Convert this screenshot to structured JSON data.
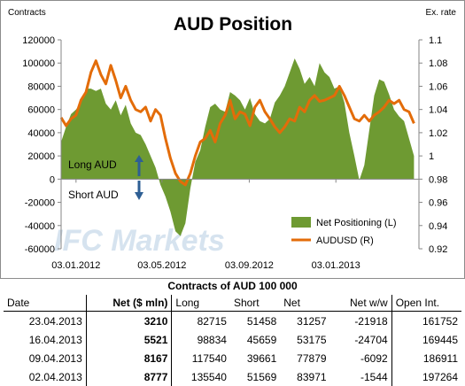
{
  "chart_data": {
    "type": "area+line",
    "title": "AUD Position",
    "ylabel": "Contracts",
    "y2label": "Ex. rate",
    "ylim": [
      -60000,
      120000
    ],
    "yticks": [
      "120000",
      "100000",
      "80000",
      "60000",
      "40000",
      "20000",
      "0",
      "-20000",
      "-40000",
      "-60000"
    ],
    "y2lim": [
      0.92,
      1.1
    ],
    "y2ticks": [
      "1.1",
      "1.08",
      "1.06",
      "1.04",
      "1.02",
      "1",
      "0.98",
      "0.96",
      "0.94",
      "0.92"
    ],
    "xlim": [
      "2011-12-13",
      "2013-04-30"
    ],
    "xticks": [
      {
        "date": "2012-01-03",
        "label": "03.01.2012"
      },
      {
        "date": "2012-05-03",
        "label": "03.05.2012"
      },
      {
        "date": "2012-09-03",
        "label": "03.09.2012"
      },
      {
        "date": "2013-01-03",
        "label": "03.01.2013"
      }
    ],
    "series": [
      {
        "name": "Net Positioning (L)",
        "type": "area",
        "color": "#6e9a32",
        "axis": "left",
        "points": [
          [
            "2011-12-13",
            32000
          ],
          [
            "2011-12-20",
            45000
          ],
          [
            "2011-12-27",
            56000
          ],
          [
            "2012-01-03",
            60000
          ],
          [
            "2012-01-10",
            66000
          ],
          [
            "2012-01-17",
            78000
          ],
          [
            "2012-01-24",
            78000
          ],
          [
            "2012-01-31",
            76000
          ],
          [
            "2012-02-07",
            78000
          ],
          [
            "2012-02-14",
            65000
          ],
          [
            "2012-02-21",
            60000
          ],
          [
            "2012-02-28",
            68000
          ],
          [
            "2012-03-06",
            55000
          ],
          [
            "2012-03-13",
            64000
          ],
          [
            "2012-03-20",
            48000
          ],
          [
            "2012-03-27",
            40000
          ],
          [
            "2012-04-03",
            38000
          ],
          [
            "2012-04-10",
            30000
          ],
          [
            "2012-04-17",
            20000
          ],
          [
            "2012-04-24",
            10000
          ],
          [
            "2012-05-01",
            -5000
          ],
          [
            "2012-05-08",
            -15000
          ],
          [
            "2012-05-15",
            -28000
          ],
          [
            "2012-05-22",
            -45000
          ],
          [
            "2012-05-29",
            -49000
          ],
          [
            "2012-06-05",
            -38000
          ],
          [
            "2012-06-12",
            -8000
          ],
          [
            "2012-06-19",
            15000
          ],
          [
            "2012-06-26",
            25000
          ],
          [
            "2012-07-03",
            45000
          ],
          [
            "2012-07-10",
            62000
          ],
          [
            "2012-07-17",
            65000
          ],
          [
            "2012-07-24",
            60000
          ],
          [
            "2012-07-31",
            58000
          ],
          [
            "2012-08-07",
            75000
          ],
          [
            "2012-08-14",
            72000
          ],
          [
            "2012-08-21",
            68000
          ],
          [
            "2012-08-28",
            60000
          ],
          [
            "2012-09-04",
            70000
          ],
          [
            "2012-09-11",
            56000
          ],
          [
            "2012-09-18",
            50000
          ],
          [
            "2012-09-25",
            48000
          ],
          [
            "2012-10-02",
            52000
          ],
          [
            "2012-10-09",
            66000
          ],
          [
            "2012-10-16",
            72000
          ],
          [
            "2012-10-23",
            80000
          ],
          [
            "2012-10-30",
            92000
          ],
          [
            "2012-11-06",
            104000
          ],
          [
            "2012-11-13",
            95000
          ],
          [
            "2012-11-20",
            82000
          ],
          [
            "2012-11-27",
            88000
          ],
          [
            "2012-12-04",
            80000
          ],
          [
            "2012-12-11",
            100000
          ],
          [
            "2012-12-18",
            92000
          ],
          [
            "2012-12-25",
            88000
          ],
          [
            "2013-01-01",
            78000
          ],
          [
            "2013-01-08",
            80000
          ],
          [
            "2013-01-15",
            66000
          ],
          [
            "2013-01-22",
            40000
          ],
          [
            "2013-01-29",
            20000
          ],
          [
            "2013-02-05",
            -1000
          ],
          [
            "2013-02-12",
            12000
          ],
          [
            "2013-02-19",
            42000
          ],
          [
            "2013-02-26",
            72000
          ],
          [
            "2013-03-05",
            86000
          ],
          [
            "2013-03-12",
            84000
          ],
          [
            "2013-03-19",
            73000
          ],
          [
            "2013-03-26",
            60000
          ],
          [
            "2013-04-02",
            54000
          ],
          [
            "2013-04-09",
            50000
          ],
          [
            "2013-04-16",
            35000
          ],
          [
            "2013-04-23",
            20000
          ]
        ]
      },
      {
        "name": "AUDUSD (R)",
        "type": "line",
        "color": "#e36c09",
        "axis": "right",
        "points": [
          [
            "2011-12-13",
            1.033
          ],
          [
            "2011-12-20",
            1.026
          ],
          [
            "2011-12-27",
            1.032
          ],
          [
            "2012-01-03",
            1.035
          ],
          [
            "2012-01-10",
            1.048
          ],
          [
            "2012-01-17",
            1.055
          ],
          [
            "2012-01-24",
            1.072
          ],
          [
            "2012-01-31",
            1.082
          ],
          [
            "2012-02-07",
            1.07
          ],
          [
            "2012-02-14",
            1.062
          ],
          [
            "2012-02-21",
            1.078
          ],
          [
            "2012-02-28",
            1.065
          ],
          [
            "2012-03-06",
            1.05
          ],
          [
            "2012-03-13",
            1.06
          ],
          [
            "2012-03-20",
            1.048
          ],
          [
            "2012-03-27",
            1.04
          ],
          [
            "2012-04-03",
            1.038
          ],
          [
            "2012-04-10",
            1.042
          ],
          [
            "2012-04-17",
            1.03
          ],
          [
            "2012-04-24",
            1.04
          ],
          [
            "2012-05-01",
            1.035
          ],
          [
            "2012-05-08",
            1.015
          ],
          [
            "2012-05-15",
            0.998
          ],
          [
            "2012-05-22",
            0.985
          ],
          [
            "2012-05-29",
            0.978
          ],
          [
            "2012-06-05",
            0.975
          ],
          [
            "2012-06-12",
            0.985
          ],
          [
            "2012-06-19",
            1.0
          ],
          [
            "2012-06-26",
            1.012
          ],
          [
            "2012-07-03",
            1.015
          ],
          [
            "2012-07-10",
            1.022
          ],
          [
            "2012-07-17",
            1.012
          ],
          [
            "2012-07-24",
            1.028
          ],
          [
            "2012-07-31",
            1.035
          ],
          [
            "2012-08-07",
            1.048
          ],
          [
            "2012-08-14",
            1.032
          ],
          [
            "2012-08-21",
            1.038
          ],
          [
            "2012-08-28",
            1.036
          ],
          [
            "2012-09-04",
            1.026
          ],
          [
            "2012-09-11",
            1.042
          ],
          [
            "2012-09-18",
            1.048
          ],
          [
            "2012-09-25",
            1.038
          ],
          [
            "2012-10-02",
            1.032
          ],
          [
            "2012-10-09",
            1.025
          ],
          [
            "2012-10-16",
            1.02
          ],
          [
            "2012-10-23",
            1.025
          ],
          [
            "2012-10-30",
            1.032
          ],
          [
            "2012-11-06",
            1.03
          ],
          [
            "2012-11-13",
            1.042
          ],
          [
            "2012-11-20",
            1.038
          ],
          [
            "2012-11-27",
            1.048
          ],
          [
            "2012-12-04",
            1.052
          ],
          [
            "2012-12-11",
            1.047
          ],
          [
            "2012-12-18",
            1.048
          ],
          [
            "2012-12-25",
            1.05
          ],
          [
            "2013-01-01",
            1.052
          ],
          [
            "2013-01-08",
            1.06
          ],
          [
            "2013-01-15",
            1.052
          ],
          [
            "2013-01-22",
            1.042
          ],
          [
            "2013-01-29",
            1.032
          ],
          [
            "2013-02-05",
            1.03
          ],
          [
            "2013-02-12",
            1.035
          ],
          [
            "2013-02-19",
            1.03
          ],
          [
            "2013-02-26",
            1.035
          ],
          [
            "2013-03-05",
            1.038
          ],
          [
            "2013-03-12",
            1.042
          ],
          [
            "2013-03-19",
            1.048
          ],
          [
            "2013-03-26",
            1.045
          ],
          [
            "2013-04-02",
            1.048
          ],
          [
            "2013-04-09",
            1.04
          ],
          [
            "2013-04-16",
            1.038
          ],
          [
            "2013-04-23",
            1.028
          ]
        ]
      }
    ],
    "legend": "bottom-right",
    "annotations": [
      {
        "text": "Long AUD",
        "arrow": "up"
      },
      {
        "text": "Short AUD",
        "arrow": "down"
      }
    ],
    "grid": false
  },
  "watermark": "IFC Markets",
  "table": {
    "caption": "Contracts of AUD 100 000",
    "headers": [
      "Date",
      "Net ($ mln)",
      "Long",
      "Short",
      "Net",
      "Net w/w",
      "Open Int."
    ],
    "rows": [
      [
        "23.04.2013",
        "3210",
        "82715",
        "51458",
        "31257",
        "-21918",
        "161752"
      ],
      [
        "16.04.2013",
        "5521",
        "98834",
        "45659",
        "53175",
        "-24704",
        "169445"
      ],
      [
        "09.04.2013",
        "8167",
        "117540",
        "39661",
        "77879",
        "-6092",
        "186911"
      ],
      [
        "02.04.2013",
        "8777",
        "135540",
        "51569",
        "83971",
        "-1544",
        "197264"
      ]
    ]
  }
}
